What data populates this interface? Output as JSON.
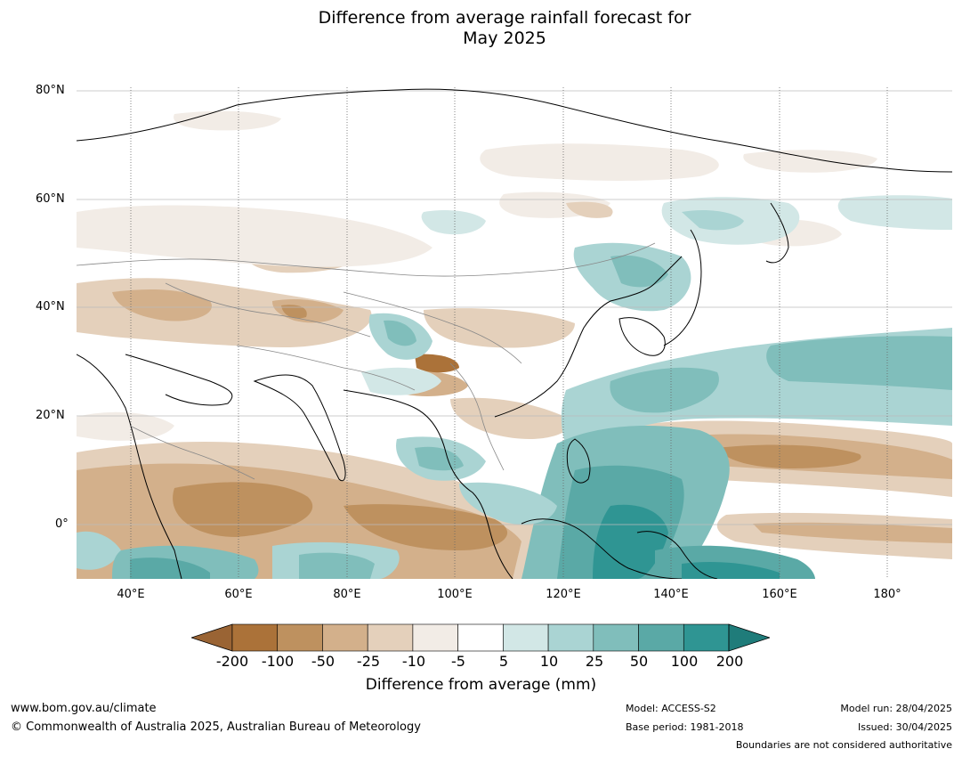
{
  "title_line1": "Difference from average rainfall forecast for",
  "title_line2": "May 2025",
  "lat_labels": [
    "80°N",
    "60°N",
    "40°N",
    "20°N",
    "0°"
  ],
  "lon_labels": [
    "40°E",
    "60°E",
    "80°E",
    "100°E",
    "120°E",
    "140°E",
    "160°E",
    "180°"
  ],
  "legend": {
    "title": "Difference from average (mm)",
    "ticks": [
      "-200",
      "-100",
      "-50",
      "-25",
      "-10",
      "-5",
      "5",
      "10",
      "25",
      "50",
      "100",
      "200"
    ],
    "colors": [
      "#9a6434",
      "#ab7239",
      "#be915f",
      "#d3b08b",
      "#e4d0bb",
      "#f2ece6",
      "#ffffff",
      "#d2e7e6",
      "#aad4d3",
      "#80bebb",
      "#5aa9a6",
      "#2f9593",
      "#1f7c7a"
    ]
  },
  "footer": {
    "website": "www.bom.gov.au/climate",
    "copyright": "© Commonwealth of Australia 2025, Australian Bureau of Meteorology",
    "model": "Model: ACCESS-S2",
    "base_period": "Base period: 1981-2018",
    "model_run": "Model run: 28/04/2025",
    "issued": "Issued: 30/04/2025",
    "disclaimer": "Boundaries are not considered authoritative"
  }
}
